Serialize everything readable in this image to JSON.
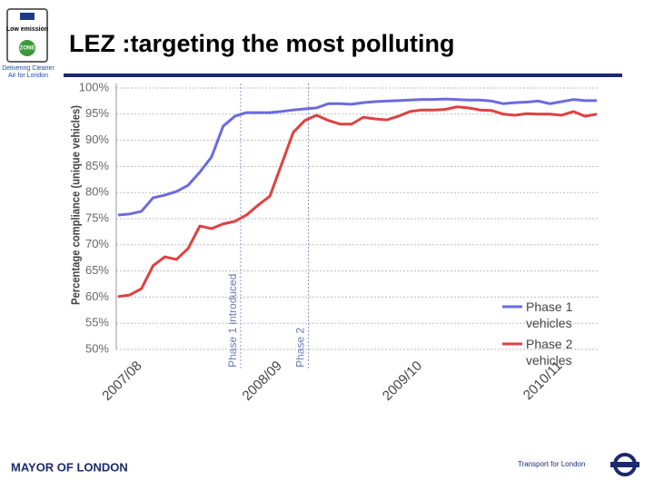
{
  "slide": {
    "title": "LEZ :targeting the most polluting",
    "logo_top": "Low emission",
    "logo_zone": "ZONE",
    "logo_caption": "Delivering Cleaner Air for London",
    "footer_left": "MAYOR OF LONDON",
    "footer_right": "Transport for London"
  },
  "chart_data": {
    "type": "line",
    "y_label": "Percentage compliance (unique vehicles)",
    "categories": [
      "2007/08",
      null,
      null,
      null,
      null,
      null,
      null,
      null,
      null,
      null,
      null,
      null,
      "2008/09",
      null,
      null,
      null,
      null,
      null,
      null,
      null,
      null,
      null,
      null,
      null,
      "2009/10",
      null,
      null,
      null,
      null,
      null,
      null,
      null,
      null,
      null,
      null,
      null,
      "2010/11",
      null,
      null,
      null,
      null,
      null
    ],
    "series": [
      {
        "name": "Phase 1 vehicles",
        "color": "#6b6be0",
        "values": [
          75.7,
          75.9,
          76.4,
          79.0,
          79.5,
          80.2,
          81.4,
          83.9,
          86.8,
          92.7,
          94.6,
          95.3,
          95.3,
          95.3,
          95.5,
          95.8,
          96.0,
          96.2,
          97.0,
          97.0,
          96.9,
          97.2,
          97.4,
          97.5,
          97.6,
          97.7,
          97.8,
          97.8,
          97.9,
          97.8,
          97.7,
          97.7,
          97.5,
          97.0,
          97.2,
          97.3,
          97.5,
          97.0,
          97.4,
          97.8,
          97.6,
          97.6
        ]
      },
      {
        "name": "Phase 2 vehicles",
        "color": "#e04040",
        "values": [
          60.1,
          60.4,
          61.6,
          66.0,
          67.7,
          67.2,
          69.3,
          73.6,
          73.1,
          74.0,
          74.5,
          75.7,
          77.6,
          79.3,
          85.4,
          91.5,
          93.8,
          94.8,
          93.8,
          93.1,
          93.1,
          94.4,
          94.1,
          93.9,
          94.6,
          95.5,
          95.8,
          95.8,
          95.9,
          96.4,
          96.2,
          95.8,
          95.7,
          95.0,
          94.8,
          95.1,
          95.0,
          95.0,
          94.8,
          95.5,
          94.6,
          95.0
        ]
      }
    ],
    "ylim": [
      50,
      100
    ],
    "yticks": [
      {
        "value": 50,
        "label": "50%"
      },
      {
        "value": 55,
        "label": "55%"
      },
      {
        "value": 60,
        "label": "60%"
      },
      {
        "value": 65,
        "label": "65%"
      },
      {
        "value": 70,
        "label": "70%"
      },
      {
        "value": 75,
        "label": "75%"
      },
      {
        "value": 80,
        "label": "80%"
      },
      {
        "value": 85,
        "label": "85%"
      },
      {
        "value": 90,
        "label": "90%"
      },
      {
        "value": 95,
        "label": "95%"
      },
      {
        "value": 100,
        "label": "100%"
      }
    ],
    "grid": true,
    "legend": "lower right",
    "annotations": [
      {
        "text": "Phase 1 introduced",
        "x": 10.5
      },
      {
        "text": "Phase 2",
        "x": 16.3
      }
    ]
  }
}
